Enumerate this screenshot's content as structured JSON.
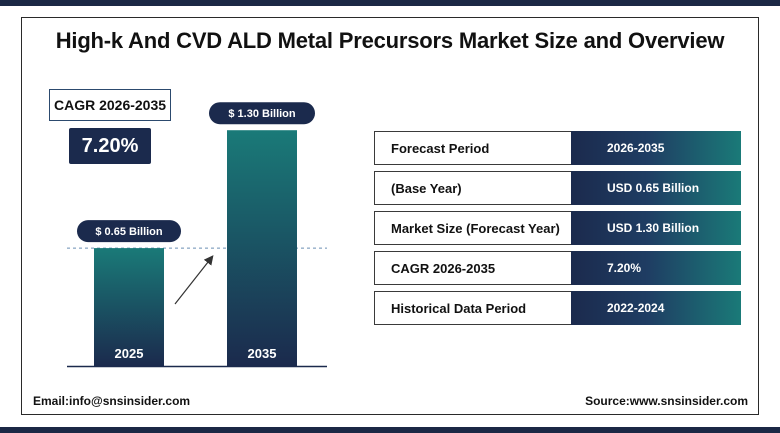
{
  "title": "High-k And CVD ALD Metal Precursors Market Size and Overview",
  "cagr": {
    "label": "CAGR 2026-2035",
    "value": "7.20%"
  },
  "chart_data": {
    "type": "bar",
    "categories": [
      "2025",
      "2035"
    ],
    "values": [
      0.65,
      1.3
    ],
    "value_labels": [
      "$ 0.65 Billion",
      "$ 1.30 Billion"
    ],
    "ylim": [
      0,
      1.45
    ],
    "grid": false,
    "reference_line_value": 0.65,
    "colors": {
      "bar_top": "#1a7a78",
      "bar_bottom": "#1b2a4d",
      "label_bg": "#1b2a4d"
    }
  },
  "table": [
    {
      "label": "Forecast Period",
      "value": "2026-2035"
    },
    {
      "label": "(Base Year)",
      "value": "USD 0.65 Billion"
    },
    {
      "label": "Market Size (Forecast Year)",
      "value": "USD 1.30 Billion"
    },
    {
      "label": "CAGR 2026-2035",
      "value": "7.20%"
    },
    {
      "label": "Historical Data Period",
      "value": "2022-2024"
    }
  ],
  "footer": {
    "email": "Email:info@snsinsider.com",
    "source": "Source:www.snsinsider.com"
  }
}
